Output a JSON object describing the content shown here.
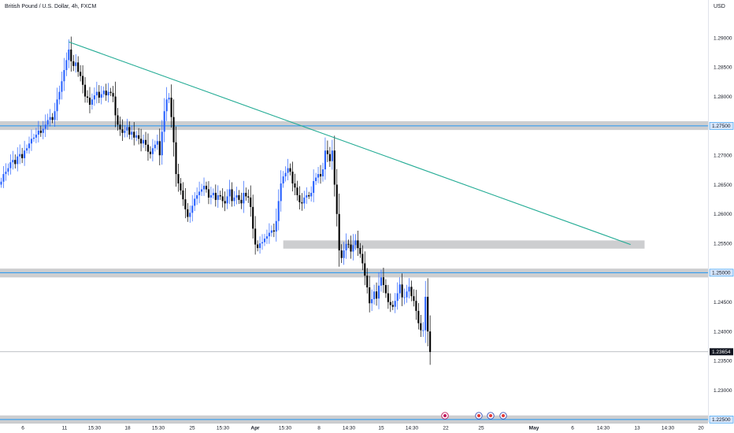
{
  "header": {
    "symbol": "British Pound / U.S. Dollar, 4h, FXCM",
    "currency": "USD"
  },
  "colors": {
    "up": "#2962ff",
    "down": "#000000",
    "trendline": "#22ab94",
    "level_line": "#2196f3",
    "zone_fill": "#c4c5c8"
  },
  "chart_data": {
    "type": "candlestick",
    "title": "British Pound / U.S. Dollar, 4h, FXCM",
    "ylim": [
      1.2245,
      1.2935
    ],
    "y_ticks": [
      "1.29000",
      "1.28500",
      "1.28000",
      "1.27500",
      "1.27000",
      "1.26500",
      "1.26000",
      "1.25500",
      "1.25000",
      "1.24500",
      "1.24000",
      "1.23500",
      "1.23000",
      "1.22500"
    ],
    "x_ticks": [
      "6",
      "11",
      "15:30",
      "18",
      "15:30",
      "25",
      "15:30",
      "Apr",
      "15:30",
      "8",
      "14:30",
      "15",
      "14:30",
      "22",
      "25",
      "May",
      "6",
      "14:30",
      "13",
      "14:30",
      "20"
    ],
    "closes": [
      1.2655,
      1.2668,
      1.2672,
      1.2678,
      1.2688,
      1.2692,
      1.2685,
      1.2698,
      1.2702,
      1.2695,
      1.2708,
      1.2712,
      1.272,
      1.2728,
      1.273,
      1.2735,
      1.2742,
      1.2738,
      1.2745,
      1.2752,
      1.276,
      1.2765,
      1.276,
      1.2775,
      1.2795,
      1.2808,
      1.2826,
      1.2845,
      1.2862,
      1.288,
      1.286,
      1.2852,
      1.2858,
      1.2842,
      1.2835,
      1.282,
      1.28,
      1.2798,
      1.2786,
      1.2795,
      1.2802,
      1.2808,
      1.2798,
      1.2804,
      1.281,
      1.2802,
      1.2808,
      1.2806,
      1.28,
      1.2768,
      1.2752,
      1.2744,
      1.2738,
      1.2742,
      1.2748,
      1.2735,
      1.274,
      1.273,
      1.2734,
      1.2728,
      1.272,
      1.2726,
      1.2718,
      1.2706,
      1.2702,
      1.2712,
      1.2718,
      1.2724,
      1.27,
      1.274,
      1.2775,
      1.2795,
      1.2798,
      1.2765,
      1.2722,
      1.2668,
      1.2652,
      1.264,
      1.2625,
      1.2608,
      1.2595,
      1.2602,
      1.2614,
      1.2626,
      1.2632,
      1.2638,
      1.2642,
      1.2648,
      1.2642,
      1.2628,
      1.2632,
      1.2636,
      1.2624,
      1.2632,
      1.263,
      1.2622,
      1.2618,
      1.263,
      1.2642,
      1.2622,
      1.2628,
      1.2632,
      1.2624,
      1.2618,
      1.2636,
      1.263,
      1.2628,
      1.2612,
      1.2575,
      1.2548,
      1.2542,
      1.255,
      1.2552,
      1.2558,
      1.2562,
      1.2568,
      1.2572,
      1.257,
      1.2588,
      1.2622,
      1.2652,
      1.2664,
      1.267,
      1.2678,
      1.2672,
      1.2652,
      1.2645,
      1.2632,
      1.262,
      1.2618,
      1.2628,
      1.2632,
      1.263,
      1.2636,
      1.2656,
      1.2662,
      1.2668,
      1.2664,
      1.2676,
      1.2708,
      1.2702,
      1.269,
      1.2708,
      1.265,
      1.26,
      1.2538,
      1.2525,
      1.2538,
      1.2549,
      1.2548,
      1.2536,
      1.2547,
      1.2555,
      1.2542,
      1.2532,
      1.2516,
      1.2495,
      1.2475,
      1.2448,
      1.2455,
      1.2468,
      1.2456,
      1.2478,
      1.2492,
      1.2479,
      1.2465,
      1.245,
      1.2445,
      1.2442,
      1.2452,
      1.2465,
      1.248,
      1.2458,
      1.2458,
      1.2468,
      1.2476,
      1.246,
      1.2452,
      1.2435,
      1.2414,
      1.2402,
      1.2402,
      1.2459,
      1.24,
      1.2365
    ],
    "start_open": 1.265,
    "trendline": {
      "from_candle": 29,
      "from_price": 1.2893,
      "to_candle": 270,
      "to_price": 1.2548
    },
    "horizontal_levels": [
      {
        "price": 1.275,
        "label": "1.27500",
        "zone": [
          1.2743,
          1.2758
        ]
      },
      {
        "price": 1.25,
        "label": "1.25000",
        "zone": [
          1.2492,
          1.2507
        ]
      },
      {
        "price": 1.225,
        "label": "1.22500",
        "zone": [
          1.2243,
          1.2257
        ]
      }
    ],
    "demand_zone": {
      "from_candle": 121,
      "to_candle": 276,
      "low": 1.2541,
      "high": 1.2555
    },
    "last_price": {
      "price": 1.23654,
      "label": "1.23654"
    }
  }
}
